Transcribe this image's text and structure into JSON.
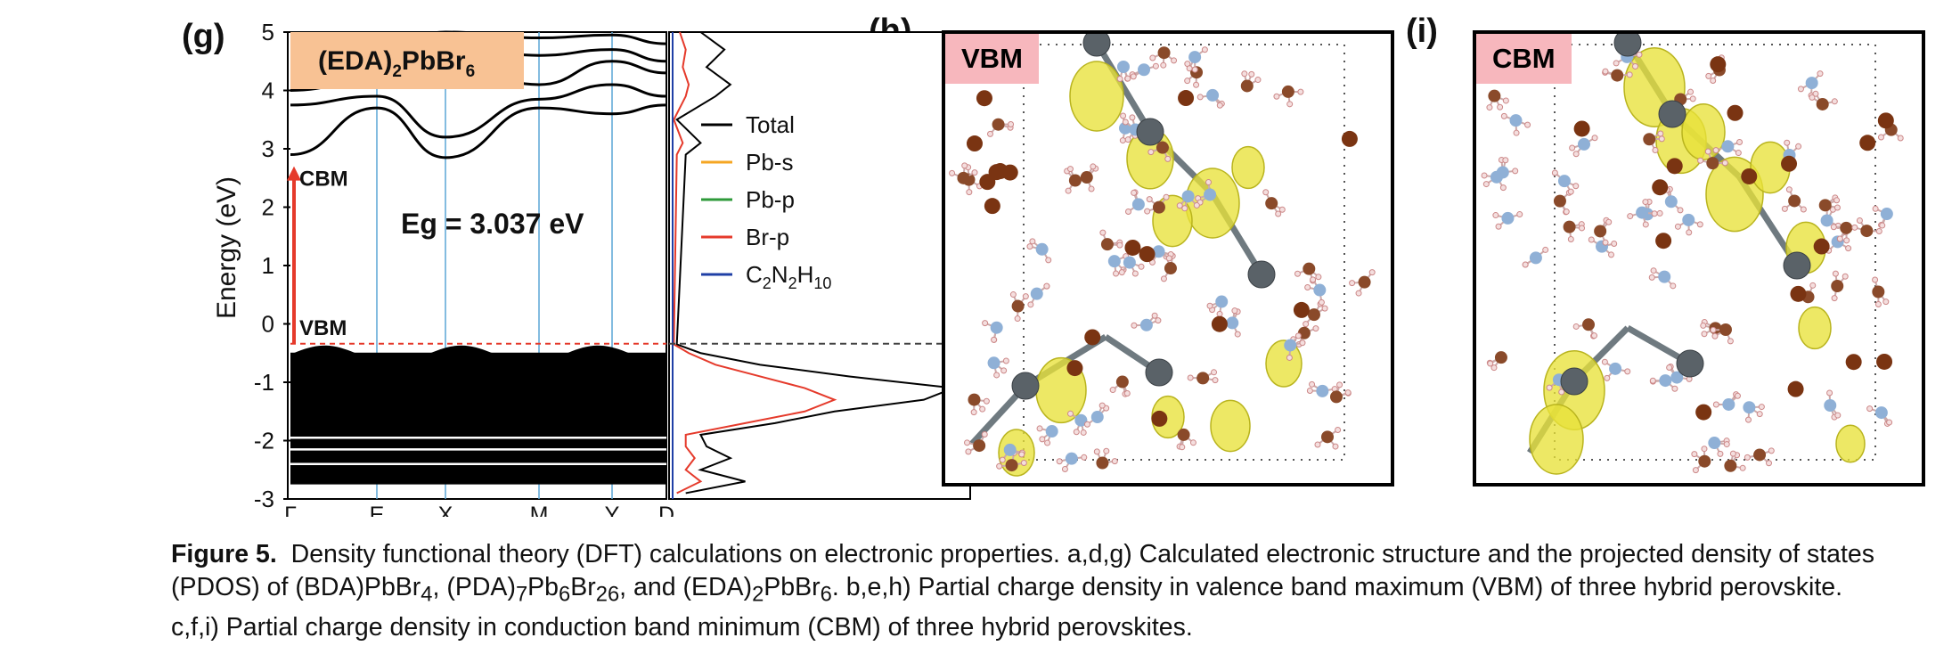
{
  "panels": {
    "g": {
      "letter": "(g)"
    },
    "h": {
      "letter": "(h)",
      "tag": "VBM"
    },
    "i": {
      "letter": "(i)",
      "tag": "CBM"
    }
  },
  "chart_data": {
    "type": "line",
    "title": "(EDA)2PbBr6",
    "title_parts": {
      "pre": "(EDA)",
      "sub1": "2",
      "mid": "PbBr",
      "sub2": "6"
    },
    "ylabel": "Energy (eV)",
    "ylim": [
      -3,
      5
    ],
    "yticks": [
      "5",
      "4",
      "3",
      "2",
      "1",
      "0",
      "-1",
      "-2",
      "-3"
    ],
    "yticks_values": [
      5,
      4,
      3,
      2,
      1,
      0,
      -1,
      -2,
      -3
    ],
    "k_path": [
      "Γ",
      "E",
      "X",
      "M",
      "Y",
      "D"
    ],
    "band_gap_label": "Eg = 3.037 eV",
    "cbm_label": "CBM",
    "vbm_label": "VBM",
    "cbm_energy": 2.7,
    "vbm_energy": -0.34,
    "conduction_bands": [
      {
        "name": "cb1",
        "values": [
          2.9,
          3.7,
          2.85,
          3.7,
          3.6,
          3.75
        ]
      },
      {
        "name": "cb2",
        "values": [
          3.75,
          3.9,
          3.2,
          3.85,
          4.1,
          3.9
        ]
      },
      {
        "name": "cb3",
        "values": [
          4.0,
          4.2,
          4.5,
          4.1,
          4.5,
          4.3
        ]
      },
      {
        "name": "cb4",
        "values": [
          4.4,
          4.5,
          4.8,
          4.6,
          4.7,
          4.5
        ]
      },
      {
        "name": "cb5",
        "values": [
          4.9,
          4.7,
          5.0,
          4.9,
          4.95,
          4.8
        ]
      }
    ],
    "valence_block": {
      "top": -0.34,
      "bottom": -2.75
    },
    "pdos_legend": [
      {
        "label": "Total",
        "color": "#000000"
      },
      {
        "label": "Pb-s",
        "color": "#f5a623"
      },
      {
        "label": "Pb-p",
        "color": "#2e9a3a"
      },
      {
        "label": "Br-p",
        "color": "#e53a2b"
      },
      {
        "label": "C2N2H10",
        "label_parts": {
          "a": "C",
          "s1": "2",
          "b": "N",
          "s2": "2",
          "c": "H",
          "s3": "10"
        },
        "color": "#1f3fa6"
      }
    ],
    "pdos": {
      "energy": [
        -2.9,
        -2.7,
        -2.5,
        -2.3,
        -2.1,
        -1.9,
        -1.7,
        -1.5,
        -1.3,
        -1.1,
        -0.9,
        -0.7,
        -0.5,
        -0.35,
        2.9,
        3.1,
        3.5,
        3.9,
        4.1,
        4.4,
        4.7,
        5.0
      ],
      "total": [
        0.05,
        0.25,
        0.1,
        0.2,
        0.12,
        0.1,
        0.35,
        0.55,
        0.85,
        0.95,
        0.6,
        0.3,
        0.1,
        0.02,
        0.05,
        0.1,
        0.02,
        0.15,
        0.2,
        0.12,
        0.18,
        0.1
      ],
      "br_p": [
        0.02,
        0.1,
        0.05,
        0.08,
        0.05,
        0.05,
        0.25,
        0.45,
        0.55,
        0.45,
        0.3,
        0.15,
        0.06,
        0.01,
        0.02,
        0.04,
        0.01,
        0.05,
        0.06,
        0.04,
        0.05,
        0.03
      ]
    },
    "fermi_line": {
      "energy": -0.34,
      "style": "dashed"
    }
  },
  "caption": {
    "label": "Figure 5.",
    "line1": "Density functional theory (DFT) calculations on electronic properties. a,d,g) Calculated electronic structure and the projected density of states",
    "line2_parts": {
      "a": "(PDOS) of (BDA)PbBr",
      "s1": "4",
      "b": ", (PDA)",
      "s2": "7",
      "c": "Pb",
      "s3": "6",
      "d": "Br",
      "s4": "26",
      "e": ", and (EDA)",
      "s5": "2",
      "f": "PbBr",
      "s6": "6",
      "g": ". b,e,h) Partial charge density in valence band maximum (VBM) of three hybrid perovskite."
    },
    "line3": "c,f,i) Partial charge density in conduction band minimum (CBM) of three hybrid perovskites."
  }
}
